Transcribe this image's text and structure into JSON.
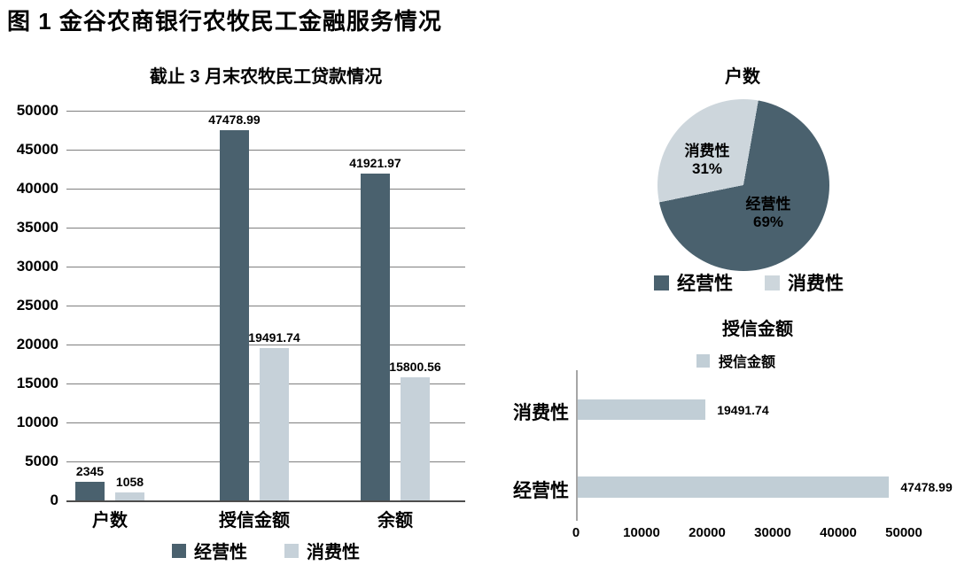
{
  "page_title": "图 1 金谷农商银行农牧民工金融服务情况",
  "colors": {
    "series_operating": "#4a616e",
    "series_consumer": "#c6d1d9",
    "pie_consumer": "#cdd6dc",
    "hbar_fill": "#c1ced6",
    "grid_line": "#7f7f7f",
    "axis_line": "#4d4d4d",
    "axis_line_light": "#a6a6a6",
    "text": "#000000",
    "background": "#ffffff"
  },
  "chart_data": [
    {
      "id": "loans_grouped_bar",
      "type": "bar",
      "title": "截止 3 月末农牧民工贷款情况",
      "categories": [
        "户数",
        "授信金额",
        "余额"
      ],
      "series": [
        {
          "name": "经营性",
          "values": [
            2345,
            47478.99,
            41921.97
          ],
          "labels": [
            "2345",
            "47478.99",
            "41921.97"
          ]
        },
        {
          "name": "消费性",
          "values": [
            1058,
            19491.74,
            15800.56
          ],
          "labels": [
            "1058",
            "19491.74",
            "15800.56"
          ]
        }
      ],
      "ylim": [
        0,
        50000
      ],
      "y_ticks": [
        0,
        5000,
        10000,
        15000,
        20000,
        25000,
        30000,
        35000,
        40000,
        45000,
        50000
      ],
      "y_tick_labels": [
        "0",
        "5000",
        "10000",
        "15000",
        "20000",
        "25000",
        "30000",
        "35000",
        "40000",
        "45000",
        "50000"
      ],
      "grid": true,
      "legend_position": "bottom"
    },
    {
      "id": "households_pie",
      "type": "pie",
      "title": "户数",
      "slices": [
        {
          "label": "经营性",
          "pct": 69,
          "pct_label": "69%"
        },
        {
          "label": "消费性",
          "pct": 31,
          "pct_label": "31%"
        }
      ],
      "start_angle_deg": 10,
      "legend_position": "bottom"
    },
    {
      "id": "credit_amount_hbar",
      "type": "bar",
      "orientation": "horizontal",
      "title": "授信金额",
      "legend_label": "授信金额",
      "categories": [
        "消费性",
        "经营性"
      ],
      "values": [
        19491.74,
        47478.99
      ],
      "value_labels": [
        "19491.74",
        "47478.99"
      ],
      "xlim": [
        0,
        50000
      ],
      "x_ticks": [
        0,
        10000,
        20000,
        30000,
        40000,
        50000
      ],
      "x_tick_labels": [
        "0",
        "10000",
        "20000",
        "30000",
        "40000",
        "50000"
      ],
      "grid": false,
      "legend_position": "top"
    }
  ]
}
